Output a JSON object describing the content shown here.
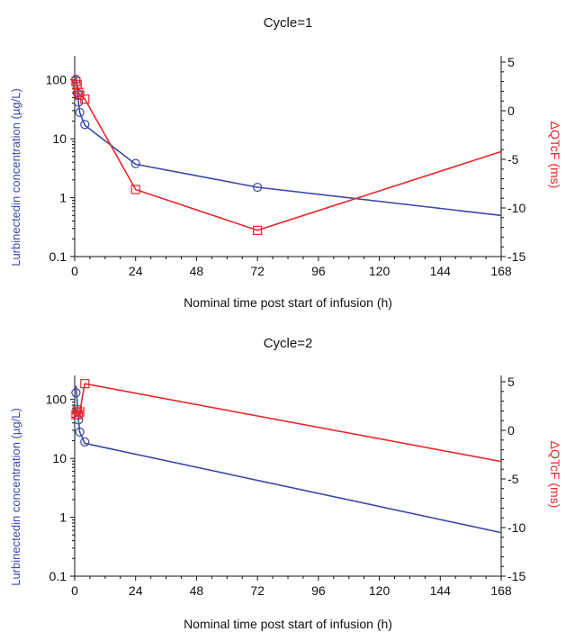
{
  "chart_data": [
    {
      "type": "line",
      "title": "Cycle=1",
      "xlabel": "Nominal time post start of infusion (h)",
      "ylabel_left": "Lurbinectedin concentration (µg/L)",
      "ylabel_right": "ΔQTcF (ms)",
      "xlim": [
        0,
        168
      ],
      "x_ticks": [
        0,
        24,
        48,
        72,
        96,
        120,
        144,
        168
      ],
      "ylim_left": [
        0.1,
        200
      ],
      "yscale_left": "log",
      "y_ticks_left": [
        0.1,
        1,
        10,
        100
      ],
      "y_tick_labels_left": [
        "0.1",
        "1",
        "10",
        "100"
      ],
      "ylim_right": [
        -15,
        5
      ],
      "y_ticks_right": [
        -15,
        -10,
        -5,
        0,
        5
      ],
      "series": [
        {
          "axis": "left",
          "color": "#3b47a8",
          "marker": "circle",
          "line": {
            "x": [
              0.5,
              1,
              1.5,
              2,
              4,
              24,
              72,
              168
            ],
            "y": [
              120,
              70,
              42,
              28,
              17,
              3.7,
              1.5,
              0.5
            ]
          },
          "points": {
            "x": [
              0.5,
              1,
              1.5,
              2,
              4,
              24,
              72
            ],
            "y": [
              102,
              60,
              42,
              28,
              17.5,
              3.8,
              1.5
            ]
          }
        },
        {
          "axis": "right",
          "color": "#e8262b",
          "marker": "square",
          "line": {
            "x": [
              0.5,
              1,
              1.5,
              2,
              4,
              24,
              72,
              168
            ],
            "y": [
              3,
              2.7,
              1.9,
              1.6,
              1.2,
              -8.1,
              -12.3,
              -4.2
            ]
          },
          "points": {
            "x": [
              0.5,
              1,
              1.5,
              2,
              4,
              24,
              72
            ],
            "y": [
              3,
              2.7,
              1.9,
              1.6,
              1.2,
              -8.1,
              -12.3
            ]
          }
        }
      ]
    },
    {
      "type": "line",
      "title": "Cycle=2",
      "xlabel": "Nominal time post start of infusion (h)",
      "ylabel_left": "Lurbinectedin concentration (µg/L)",
      "ylabel_right": "ΔQTcF (ms)",
      "xlim": [
        0,
        168
      ],
      "x_ticks": [
        0,
        24,
        48,
        72,
        96,
        120,
        144,
        168
      ],
      "ylim_left": [
        0.1,
        200
      ],
      "yscale_left": "log",
      "y_ticks_left": [
        0.1,
        1,
        10,
        100
      ],
      "y_tick_labels_left": [
        "0.1",
        "1",
        "10",
        "100"
      ],
      "ylim_right": [
        -15,
        5
      ],
      "y_ticks_right": [
        -15,
        -10,
        -5,
        0,
        5
      ],
      "series": [
        {
          "axis": "left",
          "color": "#3b47a8",
          "marker": "circle",
          "line": {
            "x": [
              0.5,
              1,
              1.5,
              2,
              4,
              168
            ],
            "y": [
              170,
              90,
              45,
              28,
              18,
              0.55
            ]
          },
          "points": {
            "x": [
              0.5,
              1,
              1.5,
              2,
              4
            ],
            "y": [
              130,
              62,
              45,
              28,
              19
            ]
          }
        },
        {
          "axis": "right",
          "color": "#e8262b",
          "marker": "square",
          "line": {
            "x": [
              0.5,
              1,
              1.5,
              2,
              4,
              168
            ],
            "y": [
              1.6,
              2.1,
              1.6,
              1.9,
              4.8,
              -3.2
            ]
          },
          "points": {
            "x": [
              0.5,
              1,
              1.5,
              2,
              4
            ],
            "y": [
              1.6,
              2.1,
              1.6,
              1.9,
              4.8
            ]
          }
        }
      ]
    }
  ]
}
